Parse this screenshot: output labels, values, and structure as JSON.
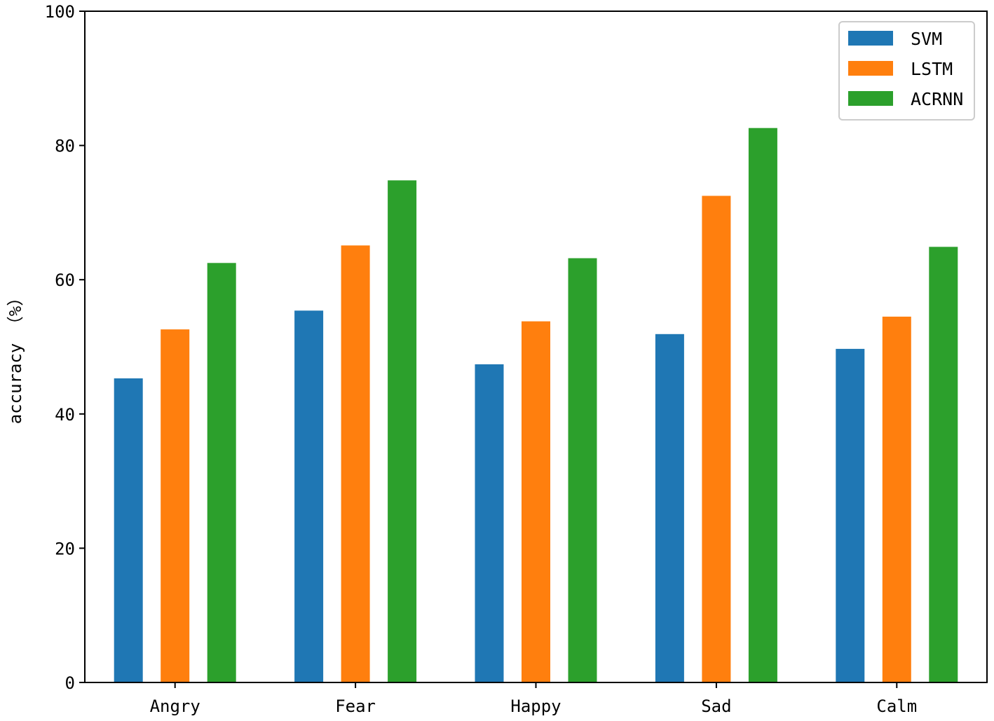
{
  "chart_data": {
    "type": "bar",
    "categories": [
      "Angry",
      "Fear",
      "Happy",
      "Sad",
      "Calm"
    ],
    "series": [
      {
        "name": "SVM",
        "color": "#1f77b4",
        "values": [
          45.3,
          55.4,
          47.4,
          51.9,
          49.7
        ]
      },
      {
        "name": "LSTM",
        "color": "#ff7f0e",
        "values": [
          52.6,
          65.1,
          53.8,
          72.5,
          54.5
        ]
      },
      {
        "name": "ACRNN",
        "color": "#2ca02c",
        "values": [
          62.5,
          74.8,
          63.2,
          82.6,
          64.9
        ]
      }
    ],
    "title": "",
    "xlabel": "",
    "ylabel": "accuracy （%）",
    "ylim": [
      0,
      100
    ],
    "yticks": [
      0,
      20,
      40,
      60,
      80,
      100
    ],
    "grid": false,
    "legend": "top-right"
  }
}
